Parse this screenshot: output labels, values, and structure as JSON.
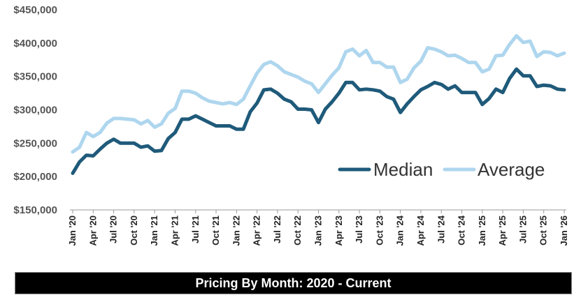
{
  "footer": {
    "title": "Pricing By Month: 2020 - Current"
  },
  "chart_data": {
    "type": "line",
    "title": "Pricing By Month: 2020 - Current",
    "xlabel": "",
    "ylabel": "",
    "ylim": [
      150000,
      450000
    ],
    "yticks": [
      150000,
      200000,
      250000,
      300000,
      350000,
      400000,
      450000
    ],
    "ytick_labels": [
      "$150,000",
      "$200,000",
      "$250,000",
      "$300,000",
      "$350,000",
      "$400,000",
      "$450,000"
    ],
    "x_tick_labels": [
      "Jan '20",
      "Apr '20",
      "Jul '20",
      "Oct '20",
      "Jan '21",
      "Apr '21",
      "Jul '21",
      "Oct '21",
      "Jan '22",
      "Apr '22",
      "Jul '22",
      "Oct '22",
      "Jan '23",
      "Apr '23",
      "Jul '23",
      "Oct '23",
      "Jan '24",
      "Apr '24",
      "Jul '24",
      "Oct '24",
      "Jan '25",
      "Apr '25",
      "Jul '25",
      "Oct '25",
      "Jan '26"
    ],
    "grid": false,
    "legend": "bottom-right inside",
    "series": [
      {
        "name": "Median",
        "color": "#1f5a7a",
        "values": [
          205000,
          222000,
          232000,
          231000,
          241000,
          250000,
          256000,
          250000,
          250000,
          250000,
          244000,
          246000,
          238000,
          239000,
          257000,
          266000,
          286000,
          286000,
          291000,
          286000,
          281000,
          276000,
          276000,
          276000,
          271000,
          271000,
          297000,
          310000,
          330000,
          331000,
          325000,
          316000,
          312000,
          301000,
          301000,
          300000,
          281000,
          301000,
          312000,
          325000,
          341000,
          341000,
          330000,
          331000,
          330000,
          328000,
          320000,
          316000,
          296000,
          309000,
          320000,
          330000,
          335000,
          341000,
          338000,
          331000,
          336000,
          326000,
          326000,
          326000,
          308000,
          317000,
          331000,
          326000,
          347000,
          361000,
          351000,
          351000,
          335000,
          337000,
          336000,
          331000,
          330000
        ]
      },
      {
        "name": "Average",
        "color": "#aed6ee",
        "values": [
          237000,
          244000,
          266000,
          260000,
          266000,
          280000,
          287000,
          287000,
          286000,
          285000,
          279000,
          284000,
          274000,
          279000,
          295000,
          302000,
          328000,
          328000,
          325000,
          318000,
          313000,
          311000,
          309000,
          311000,
          308000,
          316000,
          336000,
          355000,
          368000,
          372000,
          366000,
          357000,
          353000,
          349000,
          343000,
          339000,
          326000,
          339000,
          352000,
          363000,
          387000,
          391000,
          381000,
          389000,
          371000,
          371000,
          364000,
          364000,
          341000,
          346000,
          363000,
          373000,
          393000,
          391000,
          387000,
          381000,
          382000,
          377000,
          371000,
          371000,
          357000,
          361000,
          381000,
          382000,
          398000,
          411000,
          401000,
          403000,
          380000,
          387000,
          386000,
          381000,
          385000
        ]
      }
    ]
  }
}
